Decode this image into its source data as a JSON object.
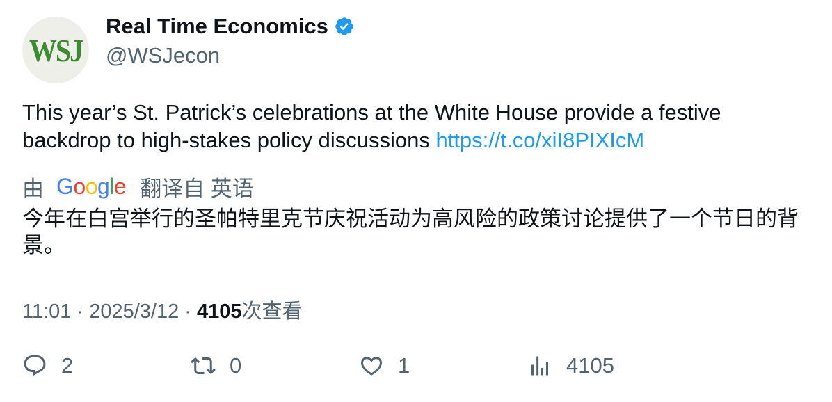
{
  "author": {
    "avatar_text": "WSJ",
    "display_name": "Real Time Economics",
    "handle": "@WSJecon",
    "verified_icon": "verified-badge-icon"
  },
  "tweet": {
    "text": "This year’s St. Patrick’s celebrations at the White House provide a festive backdrop to high-stakes policy discussions ",
    "link": "https://t.co/xiI8PIXIcM"
  },
  "translation": {
    "prefix": "由",
    "provider": "Google",
    "suffix": "翻译自 英语",
    "text": "今年在白宫举行的圣帕特里克节庆祝活动为高风险的政策讨论提供了一个节日的背景。"
  },
  "meta": {
    "time": "11:01",
    "separator": " · ",
    "date": "2025/3/12",
    "views_count": "4105",
    "views_label": "次查看"
  },
  "actions": {
    "reply_count": "2",
    "retweet_count": "0",
    "like_count": "1",
    "views_count": "4105"
  },
  "colors": {
    "link": "#1d9bf0",
    "secondary_text": "#536471",
    "verified": "#1d9bf0",
    "avatar_logo": "#3a8c2e"
  }
}
